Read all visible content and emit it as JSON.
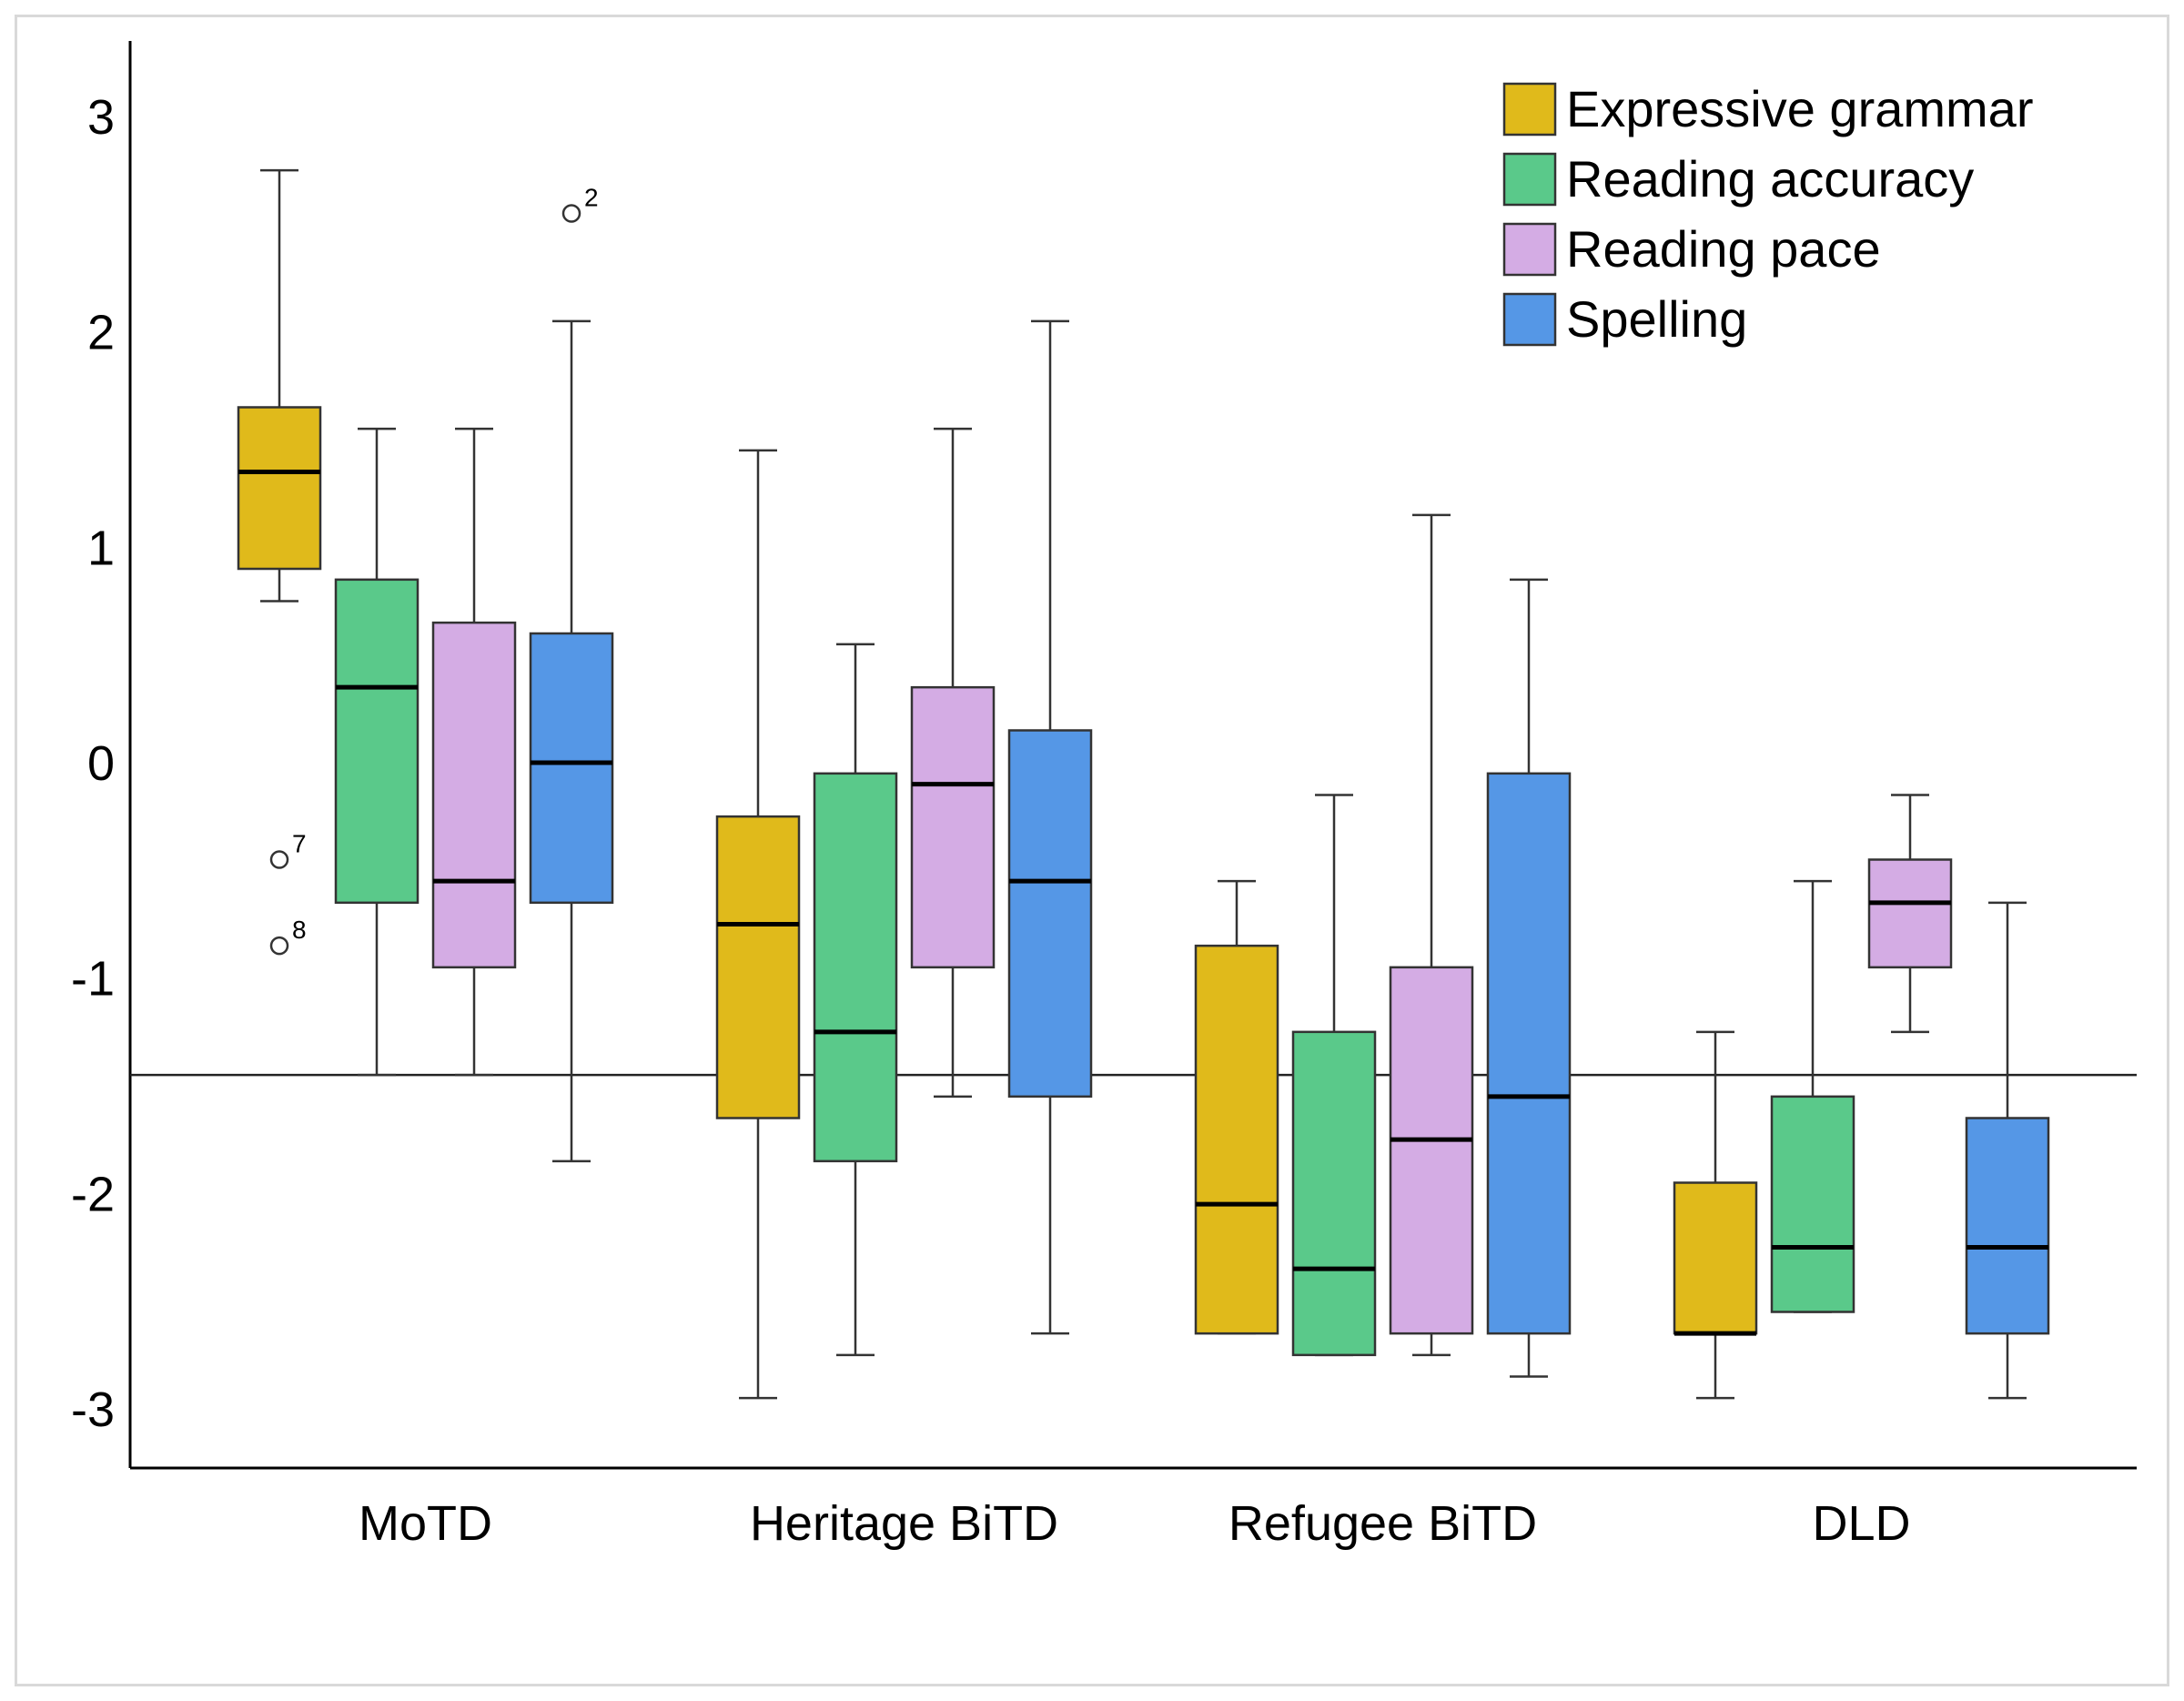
{
  "chart_data": {
    "type": "boxplot",
    "title": "",
    "xlabel": "",
    "ylabel": "",
    "ylim": [
      -3.3,
      3.35
    ],
    "yticks": [
      3,
      2,
      1,
      0,
      -1,
      -2,
      -3
    ],
    "ytick_labels": [
      "3",
      "2",
      "1",
      "0",
      "-1",
      "-2",
      "-3"
    ],
    "reference_line": -1.45,
    "categories": [
      "MoTD",
      "Heritage BiTD",
      "Refugee BiTD",
      "DLD"
    ],
    "legend": {
      "position": "top-right"
    },
    "series": [
      {
        "name": "Expressive grammar",
        "color": "#e0ba1b",
        "boxes": [
          {
            "min": 0.75,
            "q1": 0.9,
            "median": 1.35,
            "q3": 1.65,
            "max": 2.75,
            "outliers": [
              {
                "value": -0.45,
                "label": "7"
              },
              {
                "value": -0.85,
                "label": "8"
              }
            ]
          },
          {
            "min": -2.95,
            "q1": -1.65,
            "median": -0.75,
            "q3": -0.25,
            "max": 1.45,
            "outliers": []
          },
          {
            "min": -2.65,
            "q1": -2.65,
            "median": -2.05,
            "q3": -0.85,
            "max": -0.55,
            "outliers": []
          },
          {
            "min": -2.95,
            "q1": -2.65,
            "median": -2.65,
            "q3": -1.95,
            "max": -1.25,
            "outliers": []
          }
        ]
      },
      {
        "name": "Reading accuracy",
        "color": "#5ac98a",
        "boxes": [
          {
            "min": -1.45,
            "q1": -0.65,
            "median": 0.35,
            "q3": 0.85,
            "max": 1.55,
            "outliers": []
          },
          {
            "min": -2.75,
            "q1": -1.85,
            "median": -1.25,
            "q3": -0.05,
            "max": 0.55,
            "outliers": []
          },
          {
            "min": -2.75,
            "q1": -2.75,
            "median": -2.35,
            "q3": -1.25,
            "max": -0.15,
            "outliers": []
          },
          {
            "min": -2.55,
            "q1": -2.55,
            "median": -2.25,
            "q3": -1.55,
            "max": -0.55,
            "outliers": []
          }
        ]
      },
      {
        "name": "Reading pace",
        "color": "#d4ace4",
        "boxes": [
          {
            "min": -1.45,
            "q1": -0.95,
            "median": -0.55,
            "q3": 0.65,
            "max": 1.55,
            "outliers": []
          },
          {
            "min": -1.55,
            "q1": -0.95,
            "median": -0.1,
            "q3": 0.35,
            "max": 1.55,
            "outliers": []
          },
          {
            "min": -2.75,
            "q1": -2.65,
            "median": -1.75,
            "q3": -0.95,
            "max": 1.15,
            "outliers": []
          },
          {
            "min": -1.25,
            "q1": -0.95,
            "median": -0.65,
            "q3": -0.45,
            "max": -0.15,
            "outliers": []
          }
        ]
      },
      {
        "name": "Spelling",
        "color": "#5597e6",
        "boxes": [
          {
            "min": -1.85,
            "q1": -0.65,
            "median": 0.0,
            "q3": 0.6,
            "max": 2.05,
            "outliers": [
              {
                "value": 2.55,
                "label": "2"
              }
            ]
          },
          {
            "min": -2.65,
            "q1": -1.55,
            "median": -0.55,
            "q3": 0.15,
            "max": 2.05,
            "outliers": []
          },
          {
            "min": -2.85,
            "q1": -2.65,
            "median": -1.55,
            "q3": -0.05,
            "max": 0.85,
            "outliers": []
          },
          {
            "min": -2.95,
            "q1": -2.65,
            "median": -2.25,
            "q3": -1.65,
            "max": -0.65,
            "outliers": []
          }
        ]
      }
    ]
  }
}
